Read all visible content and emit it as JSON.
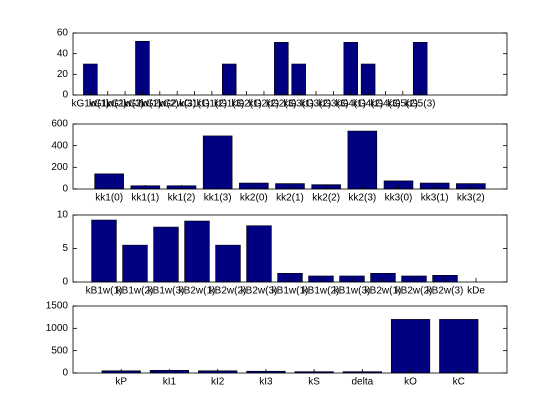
{
  "chart_data": [
    {
      "type": "bar",
      "categories": [
        "kG1w(1)",
        "kG1w(2)",
        "kG1w(3)",
        "kG2w(1)",
        "kG2w(2)",
        "kG2w(3)",
        "kG1(1)",
        "kG1(2)",
        "kG1(3)",
        "kG2(1)",
        "kG2(2)",
        "kG2(3)",
        "kG3(1)",
        "kG3(2)",
        "kG3(3)",
        "kG4(1)",
        "kG4(2)",
        "kG4(3)",
        "kG5(2)",
        "kG5(3)",
        null,
        null,
        null,
        null
      ],
      "values": [
        30,
        0,
        0,
        52,
        0,
        0,
        0,
        0,
        30,
        0,
        0,
        51,
        30,
        0,
        0,
        51,
        30,
        0,
        0,
        51,
        0,
        0,
        0,
        0
      ],
      "color": "#000080",
      "ylim": [
        0,
        60
      ],
      "yticks": [
        0,
        20,
        40,
        60
      ]
    },
    {
      "type": "bar",
      "categories": [
        "kk1(0)",
        "kk1(1)",
        "kk1(2)",
        "kk1(3)",
        "kk2(0)",
        "kk2(1)",
        "kk2(2)",
        "kk2(3)",
        "kk3(0)",
        "kk3(1)",
        "kk3(2)"
      ],
      "values": [
        140,
        30,
        30,
        490,
        55,
        50,
        40,
        535,
        75,
        55,
        50
      ],
      "color": "#000080",
      "ylim": [
        0,
        600
      ],
      "yticks": [
        0,
        200,
        400,
        600
      ]
    },
    {
      "type": "bar",
      "categories": [
        "kB1w(1)",
        "kB1w(2)",
        "kB1w(3)",
        "kB2w(1)",
        "kB2w(2)",
        "kB2w(3)",
        "kB1w(1)",
        "kB1w(2)",
        "kB1w(3)",
        "kB2w(1)",
        "kB2w(2)",
        "kB2w(3)",
        "kDe"
      ],
      "values": [
        9.25,
        5.5,
        8.2,
        9.1,
        5.5,
        8.4,
        1.3,
        0.9,
        0.9,
        1.3,
        0.9,
        1.0,
        0
      ],
      "color": "#000080",
      "ylim": [
        0,
        10
      ],
      "yticks": [
        0,
        5,
        10
      ]
    },
    {
      "type": "bar",
      "categories": [
        "kP",
        "kI1",
        "kI2",
        "kI3",
        "kS",
        "delta",
        "kO",
        "kC"
      ],
      "values": [
        50,
        60,
        50,
        40,
        30,
        30,
        1200,
        1200
      ],
      "color": "#000080",
      "ylim": [
        0,
        1500
      ],
      "yticks": [
        0,
        500,
        1000,
        1500
      ]
    }
  ]
}
